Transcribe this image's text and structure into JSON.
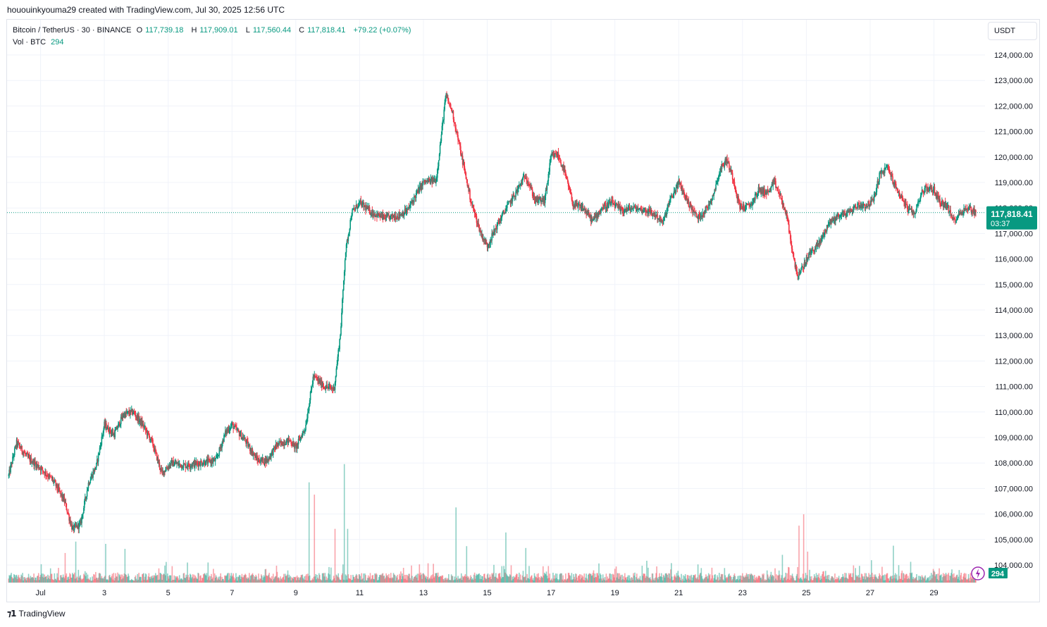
{
  "header": {
    "attribution": "hououinkyouma29 created with TradingView.com, Jul 30, 2025 12:56 UTC"
  },
  "legend": {
    "symbol": "Bitcoin / TetherUS · 30 · BINANCE",
    "open_label": "O",
    "open": "117,739.18",
    "high_label": "H",
    "high": "117,909.01",
    "low_label": "L",
    "low": "117,560.44",
    "close_label": "C",
    "close": "117,818.41",
    "change": "+79.22 (+0.07%)",
    "vol_label": "Vol · BTC",
    "vol_value": "294"
  },
  "currency_button": "USDT",
  "footer": {
    "brand": "TradingView"
  },
  "colors": {
    "up": "#089981",
    "down": "#f23645",
    "grid": "#f0f3fa",
    "text": "#131722"
  },
  "chart_data": {
    "type": "candlestick",
    "symbol": "BTCUSDT",
    "interval": "30m",
    "ylim": [
      103000,
      124500
    ],
    "y_ticks": [
      104000,
      105000,
      106000,
      107000,
      108000,
      109000,
      110000,
      111000,
      112000,
      113000,
      114000,
      115000,
      116000,
      117000,
      118000,
      119000,
      120000,
      121000,
      122000,
      123000,
      124000
    ],
    "y_tick_labels": [
      "104,000.00",
      "105,000.00",
      "106,000.00",
      "107,000.00",
      "108,000.00",
      "109,000.00",
      "110,000.00",
      "111,000.00",
      "112,000.00",
      "113,000.00",
      "114,000.00",
      "115,000.00",
      "116,000.00",
      "117,000.00",
      "118,000.00",
      "119,000.00",
      "120,000.00",
      "121,000.00",
      "122,000.00",
      "123,000.00",
      "124,000.00"
    ],
    "x_range_days": [
      -0.05,
      30.6
    ],
    "x_ticks": [
      {
        "day": 1,
        "label": "Jul"
      },
      {
        "day": 3,
        "label": "3"
      },
      {
        "day": 5,
        "label": "5"
      },
      {
        "day": 7,
        "label": "7"
      },
      {
        "day": 9,
        "label": "9"
      },
      {
        "day": 11,
        "label": "11"
      },
      {
        "day": 13,
        "label": "13"
      },
      {
        "day": 15,
        "label": "15"
      },
      {
        "day": 17,
        "label": "17"
      },
      {
        "day": 19,
        "label": "19"
      },
      {
        "day": 21,
        "label": "21"
      },
      {
        "day": 23,
        "label": "23"
      },
      {
        "day": 25,
        "label": "25"
      },
      {
        "day": 27,
        "label": "27"
      },
      {
        "day": 29,
        "label": "29"
      }
    ],
    "price_path": [
      [
        0.0,
        107500
      ],
      [
        0.25,
        108800
      ],
      [
        0.6,
        108200
      ],
      [
        1.0,
        107800
      ],
      [
        1.4,
        107300
      ],
      [
        1.75,
        106500
      ],
      [
        2.0,
        105400
      ],
      [
        2.25,
        105600
      ],
      [
        2.5,
        107200
      ],
      [
        2.75,
        107900
      ],
      [
        3.0,
        109500
      ],
      [
        3.3,
        109100
      ],
      [
        3.6,
        109900
      ],
      [
        3.9,
        110000
      ],
      [
        4.2,
        109500
      ],
      [
        4.5,
        108800
      ],
      [
        4.8,
        107600
      ],
      [
        5.1,
        108000
      ],
      [
        5.5,
        107900
      ],
      [
        6.0,
        108000
      ],
      [
        6.5,
        108100
      ],
      [
        6.8,
        109200
      ],
      [
        7.0,
        109500
      ],
      [
        7.4,
        108900
      ],
      [
        7.8,
        108100
      ],
      [
        8.1,
        108100
      ],
      [
        8.4,
        108700
      ],
      [
        8.8,
        108900
      ],
      [
        9.0,
        108600
      ],
      [
        9.3,
        109400
      ],
      [
        9.55,
        111400
      ],
      [
        9.9,
        111000
      ],
      [
        10.2,
        110900
      ],
      [
        10.4,
        113100
      ],
      [
        10.55,
        116200
      ],
      [
        10.75,
        117800
      ],
      [
        11.0,
        118200
      ],
      [
        11.4,
        117800
      ],
      [
        11.8,
        117600
      ],
      [
        12.2,
        117700
      ],
      [
        12.5,
        117900
      ],
      [
        12.8,
        118600
      ],
      [
        13.0,
        119000
      ],
      [
        13.4,
        119100
      ],
      [
        13.7,
        122400
      ],
      [
        13.9,
        121800
      ],
      [
        14.2,
        120000
      ],
      [
        14.5,
        118200
      ],
      [
        14.8,
        117000
      ],
      [
        15.0,
        116500
      ],
      [
        15.3,
        117300
      ],
      [
        15.6,
        118000
      ],
      [
        15.9,
        118600
      ],
      [
        16.2,
        119300
      ],
      [
        16.5,
        118300
      ],
      [
        16.8,
        118300
      ],
      [
        17.0,
        120000
      ],
      [
        17.2,
        120100
      ],
      [
        17.4,
        119500
      ],
      [
        17.7,
        118100
      ],
      [
        18.0,
        118000
      ],
      [
        18.3,
        117500
      ],
      [
        18.6,
        118000
      ],
      [
        18.9,
        118200
      ],
      [
        19.2,
        117900
      ],
      [
        19.6,
        118000
      ],
      [
        20.0,
        117900
      ],
      [
        20.3,
        117700
      ],
      [
        20.5,
        117400
      ],
      [
        20.7,
        118200
      ],
      [
        21.0,
        119000
      ],
      [
        21.3,
        118200
      ],
      [
        21.6,
        117600
      ],
      [
        21.9,
        118000
      ],
      [
        22.1,
        118600
      ],
      [
        22.3,
        119500
      ],
      [
        22.5,
        119900
      ],
      [
        22.7,
        119200
      ],
      [
        22.9,
        118100
      ],
      [
        23.1,
        118000
      ],
      [
        23.3,
        118200
      ],
      [
        23.5,
        118700
      ],
      [
        23.8,
        118600
      ],
      [
        24.0,
        119000
      ],
      [
        24.2,
        118400
      ],
      [
        24.4,
        117600
      ],
      [
        24.6,
        116000
      ],
      [
        24.75,
        115300
      ],
      [
        24.9,
        115700
      ],
      [
        25.1,
        116200
      ],
      [
        25.4,
        116600
      ],
      [
        25.7,
        117400
      ],
      [
        26.0,
        117700
      ],
      [
        26.3,
        117800
      ],
      [
        26.6,
        118100
      ],
      [
        26.9,
        118100
      ],
      [
        27.1,
        118300
      ],
      [
        27.3,
        119300
      ],
      [
        27.55,
        119600
      ],
      [
        27.8,
        118800
      ],
      [
        28.0,
        118400
      ],
      [
        28.2,
        117900
      ],
      [
        28.4,
        117800
      ],
      [
        28.6,
        118600
      ],
      [
        28.8,
        118800
      ],
      [
        29.0,
        118700
      ],
      [
        29.2,
        118200
      ],
      [
        29.4,
        118100
      ],
      [
        29.6,
        117500
      ],
      [
        29.9,
        117900
      ],
      [
        30.1,
        118000
      ],
      [
        30.32,
        117818
      ]
    ],
    "last_price": {
      "value": 117818.41,
      "label": "117,818.41",
      "countdown": "03:37"
    },
    "volume": {
      "unit": "BTC",
      "last": 294,
      "badge": "294",
      "scale_max": 3400,
      "spikes": [
        [
          1.78,
          650
        ],
        [
          2.1,
          900
        ],
        [
          3.05,
          850
        ],
        [
          3.65,
          740
        ],
        [
          9.42,
          2200
        ],
        [
          9.58,
          1930
        ],
        [
          10.22,
          1180
        ],
        [
          10.52,
          2600
        ],
        [
          10.62,
          1180
        ],
        [
          14.02,
          1650
        ],
        [
          14.35,
          800
        ],
        [
          15.58,
          1100
        ],
        [
          16.2,
          760
        ],
        [
          20.0,
          480
        ],
        [
          24.25,
          610
        ],
        [
          24.78,
          1250
        ],
        [
          24.92,
          1500
        ],
        [
          25.05,
          680
        ],
        [
          27.72,
          810
        ]
      ]
    }
  }
}
